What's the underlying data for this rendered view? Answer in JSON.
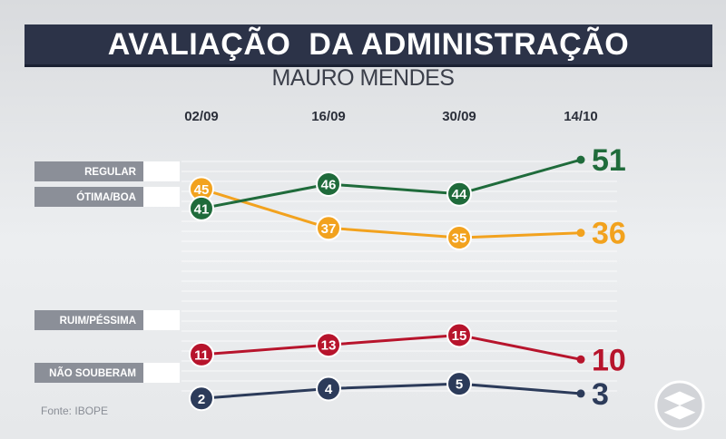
{
  "title": "AVALIAÇÃO  DA ADMINISTRAÇÃO",
  "subtitle": "MAURO MENDES",
  "source": "Fonte: IBOPE",
  "chart_data": {
    "type": "line",
    "title": "AVALIAÇÃO  DA ADMINISTRAÇÃO",
    "subtitle": "MAURO MENDES",
    "categories": [
      "02/09",
      "16/09",
      "30/09",
      "14/10"
    ],
    "ylim": [
      0,
      55
    ],
    "series": [
      {
        "name": "REGULAR",
        "color": "#f2a21e",
        "values": [
          45,
          37,
          35,
          36
        ]
      },
      {
        "name": "ÓTIMA/BOA",
        "color": "#1f6b3b",
        "values": [
          41,
          46,
          44,
          51
        ]
      },
      {
        "name": "RUIM/PÉSSIMA",
        "color": "#b7142c",
        "values": [
          11,
          13,
          15,
          10
        ]
      },
      {
        "name": "NÃO SOUBERAM",
        "color": "#2c3b5a",
        "values": [
          2,
          4,
          5,
          3
        ]
      }
    ]
  }
}
